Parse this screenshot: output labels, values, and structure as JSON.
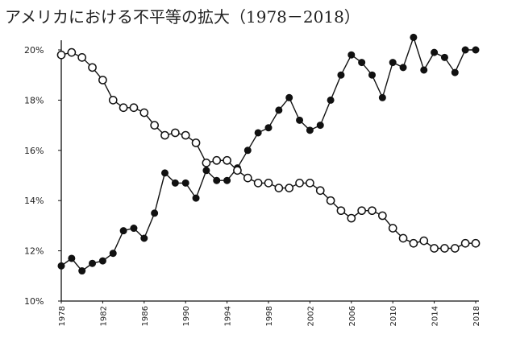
{
  "chart_data": {
    "type": "line",
    "title": "アメリカにおける不平等の拡大（1978－2018）",
    "xlabel": "",
    "ylabel": "",
    "xlim": [
      1978,
      2018
    ],
    "ylim": [
      10,
      20
    ],
    "y_ticks": [
      "10%",
      "12%",
      "14%",
      "16%",
      "18%",
      "20%"
    ],
    "x_ticks": [
      "1978",
      "1982",
      "1986",
      "1990",
      "1994",
      "1998",
      "2002",
      "2006",
      "2010",
      "2014",
      "2018"
    ],
    "grid": false,
    "legend": "none",
    "series": [
      {
        "marker": "filled-circle",
        "color": "#111111",
        "x": [
          1978,
          1979,
          1980,
          1981,
          1982,
          1983,
          1984,
          1985,
          1986,
          1987,
          1988,
          1989,
          1990,
          1991,
          1992,
          1993,
          1994,
          1995,
          1996,
          1997,
          1998,
          1999,
          2000,
          2001,
          2002,
          2003,
          2004,
          2005,
          2006,
          2007,
          2008,
          2009,
          2010,
          2011,
          2012,
          2013,
          2014,
          2015,
          2016,
          2017,
          2018
        ],
        "values": [
          11.4,
          11.7,
          11.2,
          11.5,
          11.6,
          11.9,
          12.8,
          12.9,
          12.5,
          13.5,
          15.1,
          14.7,
          14.7,
          14.1,
          15.2,
          14.8,
          14.8,
          15.3,
          16.0,
          16.7,
          16.9,
          17.6,
          18.1,
          17.2,
          16.8,
          17.0,
          18.0,
          19.0,
          19.8,
          19.5,
          19.0,
          18.1,
          19.5,
          19.3,
          20.5,
          19.2,
          19.9,
          19.7,
          19.1,
          20.0,
          20.0
        ]
      },
      {
        "marker": "open-circle",
        "color": "#111111",
        "x": [
          1978,
          1979,
          1980,
          1981,
          1982,
          1983,
          1984,
          1985,
          1986,
          1987,
          1988,
          1989,
          1990,
          1991,
          1992,
          1993,
          1994,
          1995,
          1996,
          1997,
          1998,
          1999,
          2000,
          2001,
          2002,
          2003,
          2004,
          2005,
          2006,
          2007,
          2008,
          2009,
          2010,
          2011,
          2012,
          2013,
          2014,
          2015,
          2016,
          2017,
          2018
        ],
        "values": [
          19.8,
          19.9,
          19.7,
          19.3,
          18.8,
          18.0,
          17.7,
          17.7,
          17.5,
          17.0,
          16.6,
          16.7,
          16.6,
          16.3,
          15.5,
          15.6,
          15.6,
          15.2,
          14.9,
          14.7,
          14.7,
          14.5,
          14.5,
          14.7,
          14.7,
          14.4,
          14.0,
          13.6,
          13.3,
          13.6,
          13.6,
          13.4,
          12.9,
          12.5,
          12.3,
          12.4,
          12.1,
          12.1,
          12.1,
          12.3,
          12.3
        ]
      }
    ]
  }
}
